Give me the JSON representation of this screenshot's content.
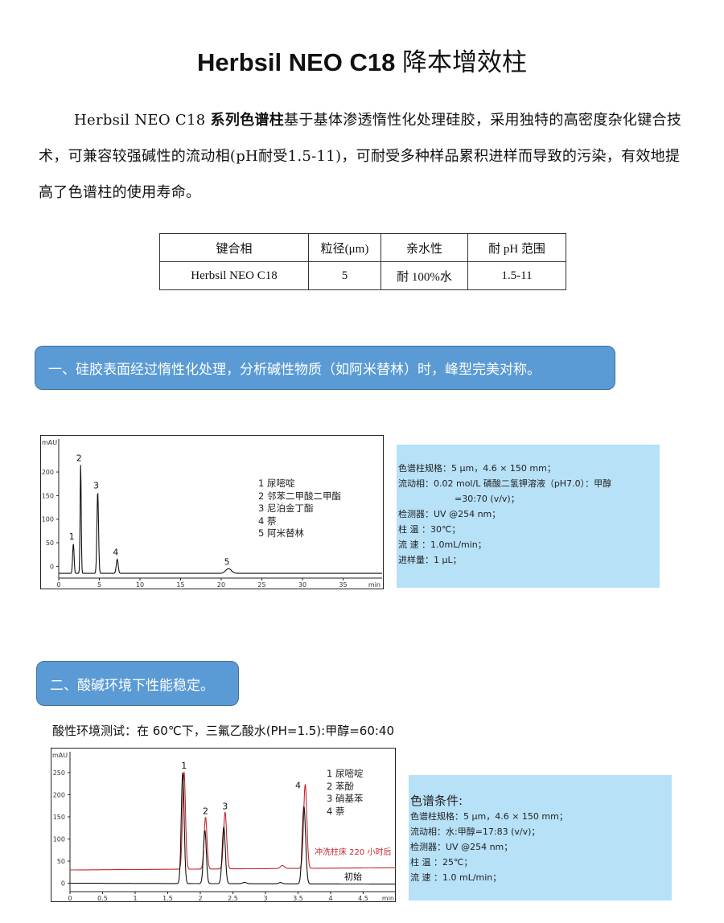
{
  "title": {
    "latin": "Herbsil NEO C18",
    "cn": "降本增效柱"
  },
  "intro": {
    "lead": "Herbsil NEO C18 ",
    "bold": "系列色谱柱",
    "rest": "基于基体渗透惰性化处理硅胶，采用独特的高密度杂化键合技术，可兼容较强碱性的流动相(pH耐受1.5-11)，可耐受多种样品累积进样而导致的污染，有效地提高了色谱柱的使用寿命。"
  },
  "spec_table": {
    "headers": [
      "键合相",
      "粒径(μm)",
      "亲水性",
      "耐  pH  范围"
    ],
    "rows": [
      [
        "Herbsil NEO C18",
        "5",
        "耐 100%水",
        "1.5-11"
      ]
    ]
  },
  "section1": {
    "banner": "一、硅胶表面经过惰性化处理，分析碱性物质（如阿米替林）时，峰型完美对称。",
    "conditions": [
      "色谱柱规格：5 µm，4.6 × 150 mm；",
      "流动相：0.02 mol/L 磷酸二氢钾溶液（pH7.0）：甲醇",
      "=30:70 (v/v)；",
      "检测器：UV @254 nm；",
      "柱 温 ：30℃；",
      "流 速 ：1.0mL/min；",
      "进样量：1 µL；"
    ]
  },
  "section2": {
    "banner": "二、酸碱环境下性能稳定。",
    "test_label": "酸性环境测试：在 60℃下，三氟乙酸水(PH=1.5):甲醇=60:40",
    "conditions_title": "色谱条件:",
    "conditions": [
      "色谱柱规格：5 µm，4.6 × 150 mm；",
      "流动相：水:甲醇=17:83 (v/v)；",
      "检测器：UV @254 nm；",
      "柱 温 ：25℃；",
      "流 速 ：1.0 mL/min；"
    ]
  },
  "chart_data": [
    {
      "type": "line",
      "ylabel": "mAU",
      "xlabel": "min",
      "xlim": [
        0,
        39.8
      ],
      "ylim": [
        -25,
        270
      ],
      "xticks": [
        "0",
        "5",
        "10",
        "15",
        "20",
        "25",
        "30",
        "35"
      ],
      "xtick_values": [
        0,
        5,
        10,
        15,
        20,
        25,
        30,
        35
      ],
      "yticks": [
        "0",
        "50",
        "100",
        "150",
        "200"
      ],
      "ytick_values": [
        0,
        50,
        100,
        150,
        200
      ],
      "grid": false,
      "legend": [
        "1 尿嘧啶",
        "2 邻苯二甲酸二甲酯",
        "3 尼泊金丁酯",
        "4 萘",
        "5 阿米替林"
      ],
      "series": [
        {
          "color": "#111111",
          "baseline": -15,
          "peaks": [
            {
              "label": "1",
              "time": 1.8,
              "apex": 48
            },
            {
              "label": "2",
              "time": 2.7,
              "apex": 215
            },
            {
              "label": "3",
              "time": 4.8,
              "apex": 157
            },
            {
              "label": "4",
              "time": 7.2,
              "apex": 15
            },
            {
              "label": "5",
              "time": 20.9,
              "apex": -5
            }
          ]
        }
      ]
    },
    {
      "type": "line",
      "ylabel": "mAU",
      "xlabel": "min",
      "xlim": [
        0,
        5.0
      ],
      "ylim": [
        -19,
        297
      ],
      "xticks": [
        "0",
        "0.5",
        "1",
        "1.5",
        "2",
        "2.5",
        "3",
        "3.5",
        "4",
        "4.5"
      ],
      "xtick_values": [
        0,
        0.5,
        1,
        1.5,
        2,
        2.5,
        3,
        3.5,
        4,
        4.5
      ],
      "yticks": [
        "0",
        "50",
        "100",
        "150",
        "200",
        "250"
      ],
      "ytick_values": [
        0,
        50,
        100,
        150,
        200,
        250
      ],
      "grid": false,
      "legend": [
        "1 尿嘧啶",
        "2 苯酚",
        "3 硝基苯",
        "4 萘"
      ],
      "series": [
        {
          "name": "冲洗柱床 220 小时后",
          "color": "#c0282d",
          "baseline": [
            30,
            35
          ],
          "peaks": [
            {
              "time": 1.75,
              "apex": 250
            },
            {
              "time": 2.08,
              "apex": 147
            },
            {
              "time": 2.38,
              "apex": 158
            },
            {
              "time": 3.26,
              "apex": 37
            },
            {
              "time": 3.61,
              "apex": 220
            }
          ]
        },
        {
          "name": "初始",
          "color": "#111111",
          "baseline": [
            0,
            -2
          ],
          "peaks": [
            {
              "label": "1",
              "time": 1.73,
              "apex": 250
            },
            {
              "label": "2",
              "time": 2.07,
              "apex": 120
            },
            {
              "label": "3",
              "time": 2.36,
              "apex": 128
            },
            {
              "time": 2.68,
              "apex": 3
            },
            {
              "time": 3.23,
              "apex": 3
            },
            {
              "label": "4",
              "time": 3.59,
              "apex": 175
            }
          ]
        }
      ],
      "peak_labels": [
        {
          "label": "1",
          "time": 1.75,
          "apex": 250
        },
        {
          "label": "2",
          "time": 2.08,
          "apex": 147
        },
        {
          "label": "3",
          "time": 2.38,
          "apex": 158
        },
        {
          "label": "4",
          "time": 3.5,
          "apex": 205
        }
      ]
    }
  ]
}
